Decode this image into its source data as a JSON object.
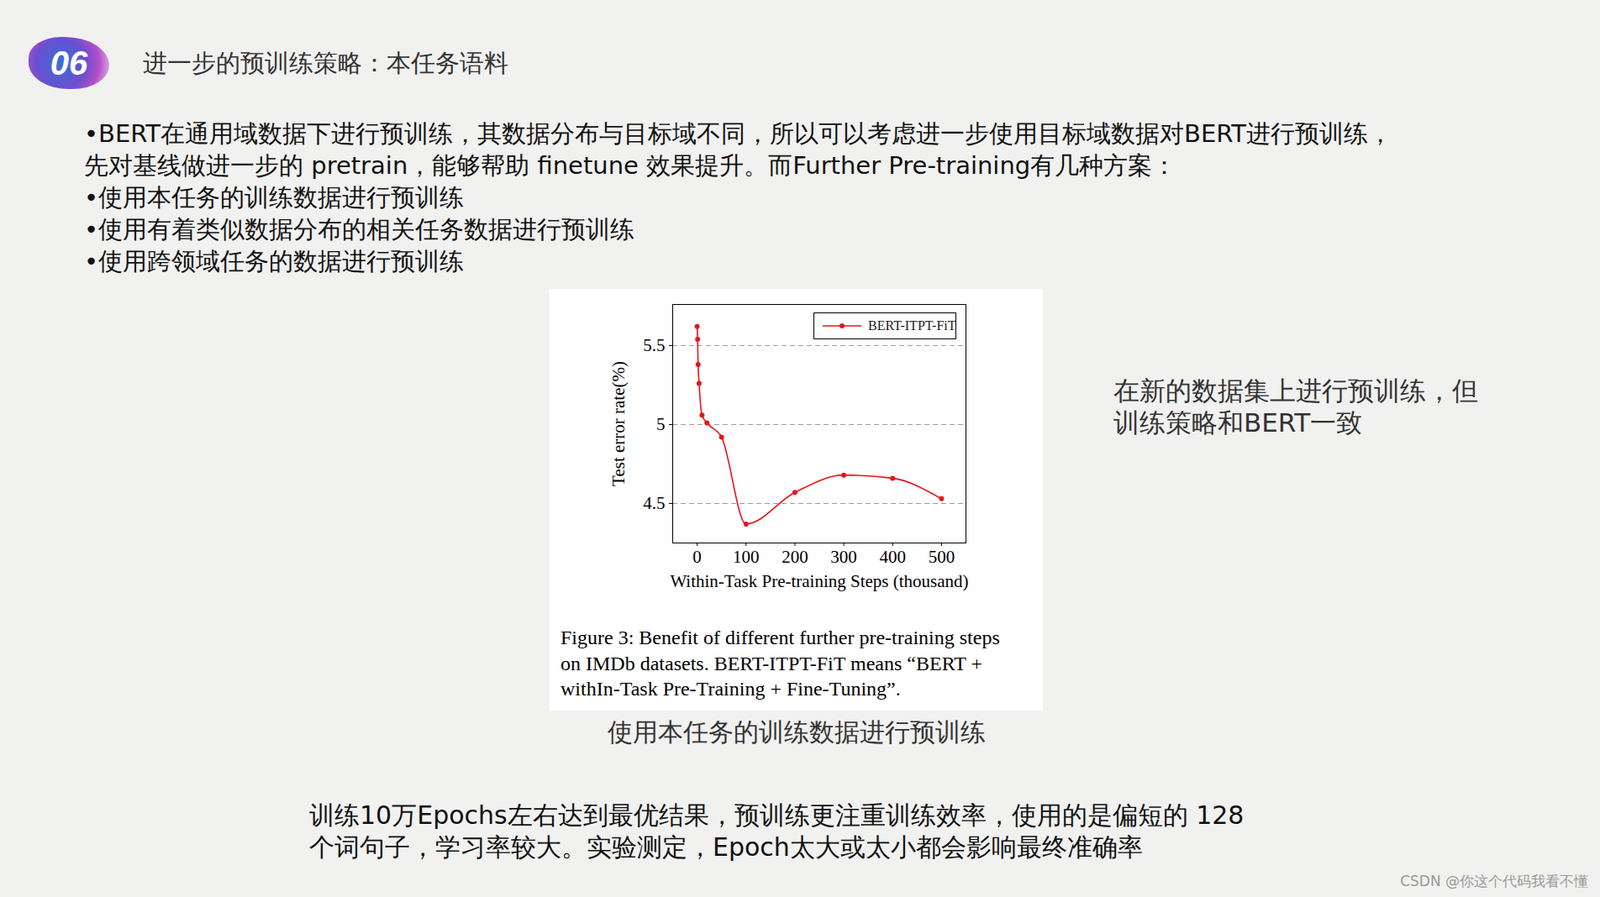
{
  "slide": {
    "badge": "06",
    "title": "进一步的预训练策略：本任务语料",
    "body_lines": [
      "•BERT在通用域数据下进行预训练，其数据分布与目标域不同，所以可以考虑进一步使用目标域数据对BERT进行预训练，",
      "先对基线做进一步的 pretrain，能够帮助 finetune 效果提升。而Further Pre-training有几种方案：",
      "•使用本任务的训练数据进行预训练",
      "•使用有着类似数据分布的相关任务数据进行预训练",
      "•使用跨领域任务的数据进行预训练"
    ],
    "chart_label": "使用本任务的训练数据进行预训练",
    "side_note_lines": [
      "在新的数据集上进行预训练，但",
      "训练策略和BERT一致"
    ],
    "conclusion_lines": [
      "训练10万Epochs左右达到最优结果，预训练更注重训练效率，使用的是偏短的 128",
      "个词句子，学习率较大。实验测定，Epoch太大或太小都会影响最终准确率"
    ],
    "watermark": "CSDN @你这个代码我看不懂"
  },
  "chart_data": {
    "type": "line",
    "caption_lines": [
      "Figure 3: Benefit of different further pre-training steps",
      "on IMDb datasets.  BERT-ITPT-FiT means “BERT +",
      "withIn-Task Pre-Training + Fine-Tuning”."
    ],
    "x_label": "Within-Task Pre-training Steps (thousand)",
    "y_label": "Test error rate(%)",
    "x": [
      0,
      1,
      2,
      4,
      10,
      20,
      50,
      100,
      200,
      300,
      400,
      500
    ],
    "series": [
      {
        "name": "BERT-ITPT-FiT",
        "color": "#e8141b",
        "marker": "circle",
        "line_style": "smooth",
        "values": [
          5.62,
          5.54,
          5.38,
          5.26,
          5.06,
          5.01,
          4.92,
          4.37,
          4.57,
          4.68,
          4.66,
          4.53
        ]
      }
    ],
    "xlim": [
      -50,
      550
    ],
    "xticks": [
      0,
      100,
      200,
      300,
      400,
      500
    ],
    "ylim": [
      4.25,
      5.76
    ],
    "yticks": [
      4.5,
      5,
      5.5
    ],
    "grid": true,
    "legend": "top-right"
  }
}
